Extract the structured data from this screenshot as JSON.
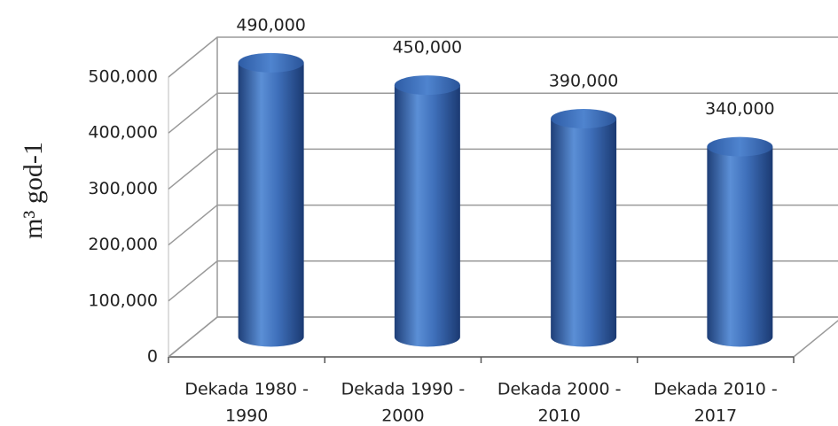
{
  "chart_data": {
    "type": "bar3d",
    "y_label": "m³ god-1",
    "categories": [
      [
        "Dekada 1980 -",
        "1990"
      ],
      [
        "Dekada 1990 -",
        "2000"
      ],
      [
        "Dekada 2000 -",
        "2010"
      ],
      [
        "Dekada 2010 -",
        "2017"
      ]
    ],
    "values": [
      490000,
      450000,
      390000,
      340000
    ],
    "value_labels": [
      "490,000",
      "450,000",
      "390,000",
      "340,000"
    ],
    "color": "#4a7cc4",
    "ylim": [
      0,
      500000
    ],
    "yticks": [
      0,
      {
        "value": 100000,
        "label": "100,000"
      },
      {
        "value": 200000,
        "label": "200,000"
      },
      {
        "value": 300000,
        "label": "300,000"
      },
      {
        "value": 400000,
        "label": "400,000"
      },
      {
        "value": 500000,
        "label": "500,000"
      }
    ],
    "grid": true
  }
}
